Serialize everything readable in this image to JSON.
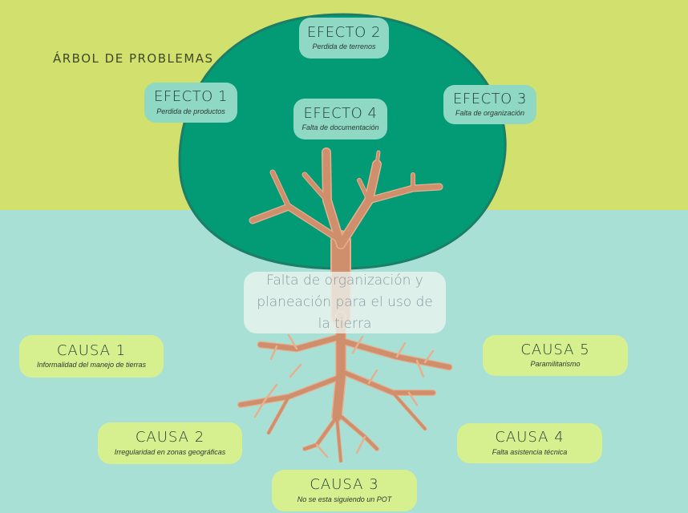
{
  "title": "ÁRBOL DE PROBLEMAS",
  "central_problem": "Falta de organización y planeación para el uso de la tierra",
  "effects": [
    {
      "label": "EFECTO 1",
      "detail": "Perdida de productos"
    },
    {
      "label": "EFECTO 2",
      "detail": "Perdida de terrenos"
    },
    {
      "label": "EFECTO 3",
      "detail": "Falta de organización"
    },
    {
      "label": "EFECTO 4",
      "detail": "Falta de documentación"
    }
  ],
  "causes": [
    {
      "label": "CAUSA 1",
      "detail": "Informalidad del manejo de tierras"
    },
    {
      "label": "CAUSA 2",
      "detail": "Irregularidad en zonas geográficas"
    },
    {
      "label": "CAUSA 3",
      "detail": "No se esta siguiendo un POT"
    },
    {
      "label": "CAUSA 4",
      "detail": "Falta asistencia técnica"
    },
    {
      "label": "CAUSA 5",
      "detail": "Paramilitarismo"
    }
  ],
  "colors": {
    "sky": "#d2e06e",
    "ground": "#a8e0d6",
    "canopy": "#039a76",
    "canopy_edge": "#1c7e67",
    "trunk": "#cf8e6c",
    "trunk_edge": "#e6b08f",
    "effect_box": "#8ed8c4",
    "cause_box": "#d7f08f"
  }
}
